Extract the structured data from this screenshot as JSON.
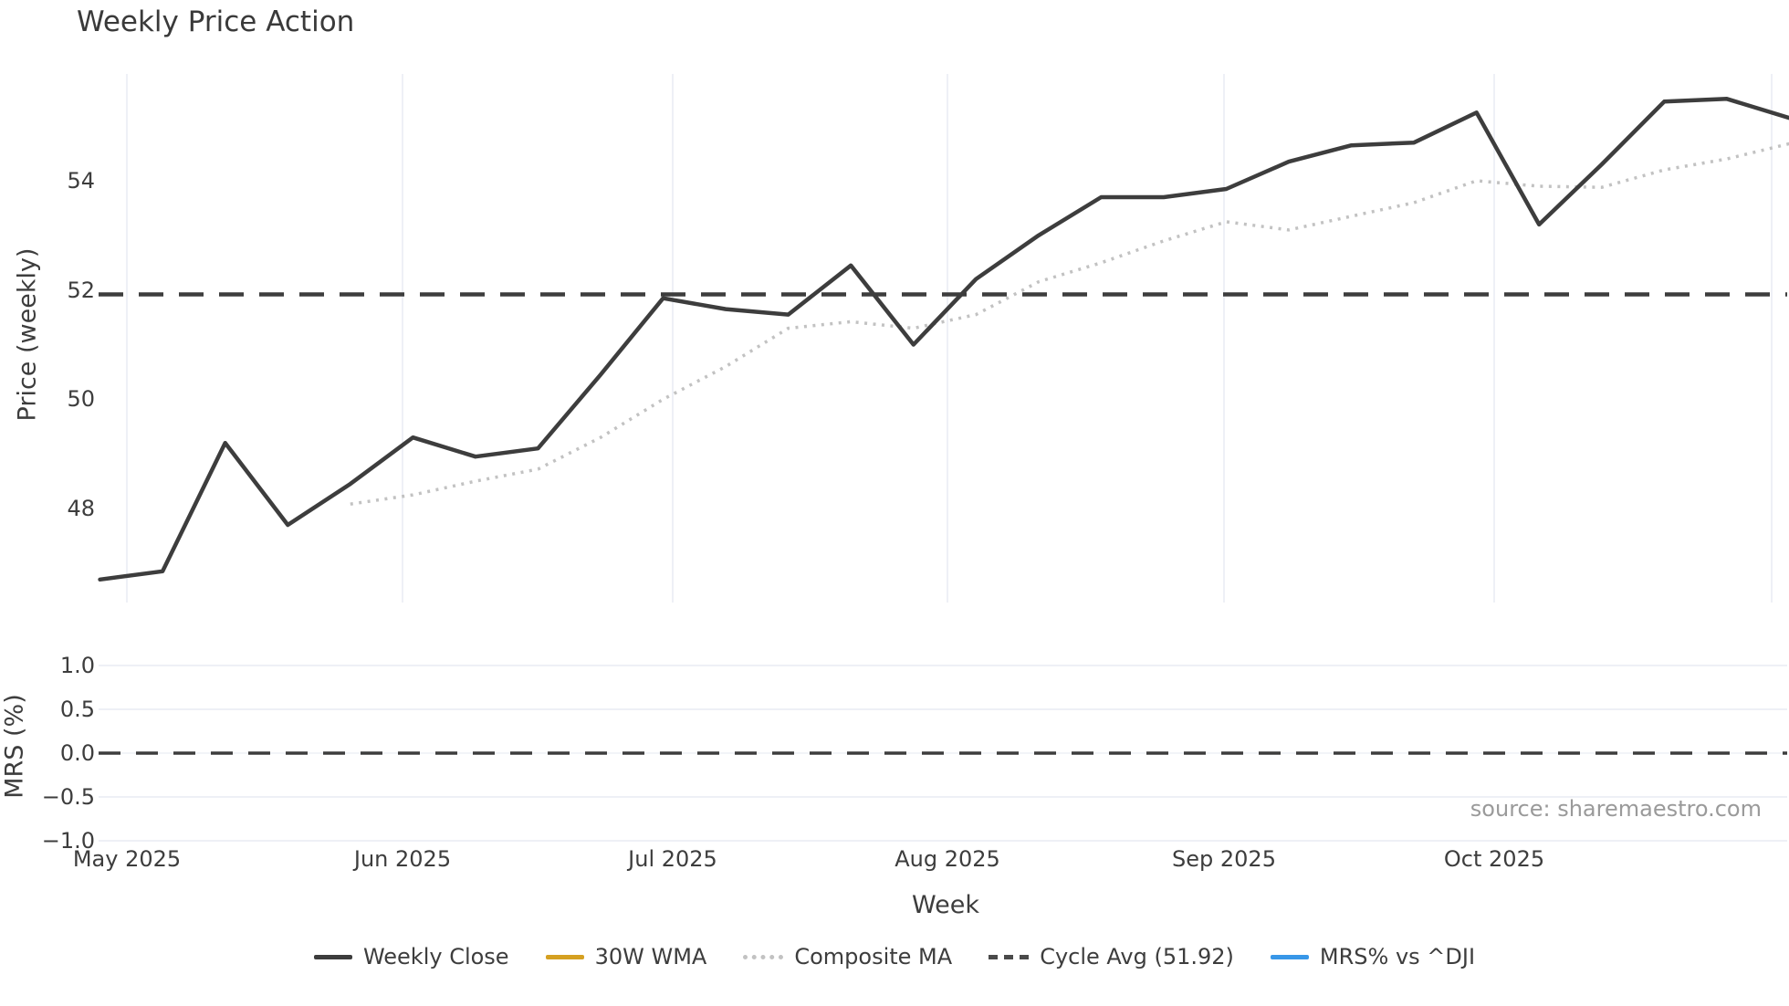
{
  "title": "Weekly Price Action",
  "source_text": "source: sharemaestro.com",
  "xlabel": "Week",
  "labels": {
    "price_ylabel": "Price (weekly)",
    "mrs_ylabel": "MRS (%)",
    "price_yticks": [
      "54",
      "52",
      "50",
      "48"
    ],
    "mrs_yticks": [
      "1.0",
      "0.5",
      "0.0",
      "−0.5",
      "−1.0"
    ],
    "xticks": [
      "May 2025",
      "Jun 2025",
      "Jul 2025",
      "Aug 2025",
      "Sep 2025",
      "Oct 2025"
    ]
  },
  "legend": {
    "items": [
      {
        "label": "Weekly Close",
        "style": "solid",
        "color": "#3d3d3d"
      },
      {
        "label": "30W WMA",
        "style": "solid",
        "color": "#d5a021"
      },
      {
        "label": "Composite MA",
        "style": "dotted",
        "color": "#c2c2c2"
      },
      {
        "label": "Cycle Avg (51.92)",
        "style": "dashed",
        "color": "#4a4a4a"
      },
      {
        "label": "MRS% vs ^DJI",
        "style": "solid",
        "color": "#3897e8"
      }
    ]
  },
  "colors": {
    "weekly_close": "#3d3d3d",
    "wma_30w": "#d5a021",
    "composite_ma": "#c2c2c2",
    "cycle_avg": "#3d3d3d",
    "mrs_line": "#3897e8",
    "gridline": "#e9ecf3",
    "zero_gridline": "#eef0f5",
    "tick_text": "#3d3d3d",
    "source_text_color": "#9a9a9a"
  },
  "chart_data": [
    {
      "type": "line",
      "panel": "price",
      "title": "Weekly Price Action",
      "xlabel": "Week",
      "ylabel": "Price (weekly)",
      "x_tick_labels": [
        "May 2025",
        "Jun 2025",
        "Jul 2025",
        "Aug 2025",
        "Sep 2025",
        "Oct 2025"
      ],
      "y_ticks": [
        54,
        52,
        50,
        48
      ],
      "ylim": [
        46.3,
        56.0
      ],
      "n_weeks": 28,
      "grid": "vertical-monthly",
      "legend_position": "bottom-center",
      "series": [
        {
          "name": "Weekly Close",
          "style": "solid",
          "color": "#3d3d3d",
          "values": [
            46.7,
            46.85,
            49.2,
            47.7,
            48.45,
            49.3,
            48.95,
            49.1,
            50.45,
            51.85,
            51.65,
            51.55,
            52.45,
            51.0,
            52.2,
            53.0,
            53.7,
            53.7,
            53.85,
            54.35,
            54.65,
            54.7,
            55.25,
            53.2,
            54.3,
            55.45,
            55.5,
            55.15
          ]
        },
        {
          "name": "30W WMA",
          "style": "solid",
          "color": "#d5a021",
          "values": []
        },
        {
          "name": "Composite MA",
          "style": "dotted",
          "color": "#c2c2c2",
          "values": [
            null,
            null,
            null,
            null,
            48.08,
            48.25,
            48.5,
            48.72,
            49.3,
            50.0,
            50.6,
            51.3,
            51.42,
            51.3,
            51.55,
            52.15,
            52.5,
            52.9,
            53.25,
            53.1,
            53.35,
            53.6,
            54.0,
            53.9,
            53.88,
            54.2,
            54.4,
            54.68
          ]
        },
        {
          "name": "Cycle Avg (51.92)",
          "style": "dashed",
          "color": "#3d3d3d",
          "constant": 51.92
        }
      ]
    },
    {
      "type": "line",
      "panel": "mrs",
      "ylabel": "MRS (%)",
      "y_ticks": [
        1.0,
        0.5,
        0.0,
        -0.5,
        -1.0
      ],
      "ylim": [
        -1.0,
        1.15
      ],
      "grid": "horizontal",
      "zero_line": {
        "value": 0.0,
        "style": "dashed",
        "color": "#3d3d3d"
      },
      "series": [
        {
          "name": "MRS% vs ^DJI",
          "style": "solid",
          "color": "#3897e8",
          "values": []
        }
      ]
    }
  ]
}
